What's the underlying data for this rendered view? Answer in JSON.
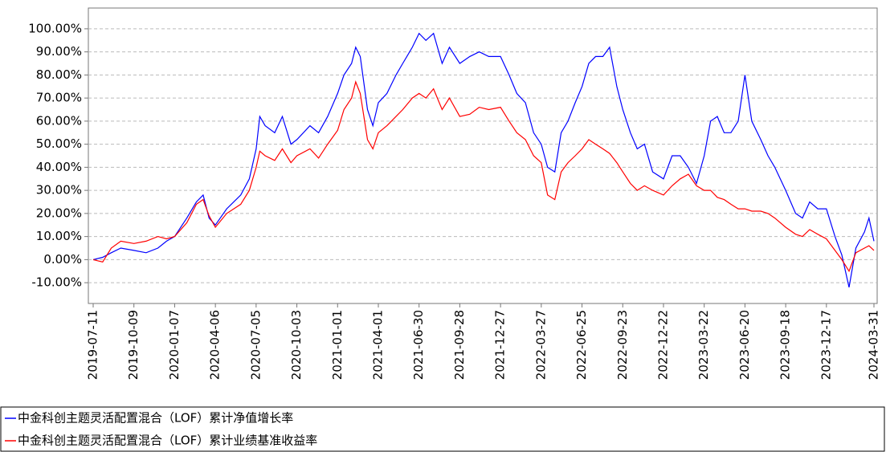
{
  "chart_data": {
    "type": "line",
    "x": [
      "2019-07-11",
      "2019-08-01",
      "2019-08-20",
      "2019-09-10",
      "2019-10-09",
      "2019-11-05",
      "2019-12-01",
      "2019-12-20",
      "2020-01-07",
      "2020-02-03",
      "2020-02-24",
      "2020-03-10",
      "2020-03-23",
      "2020-04-06",
      "2020-05-01",
      "2020-06-01",
      "2020-06-20",
      "2020-07-05",
      "2020-07-13",
      "2020-07-25",
      "2020-08-15",
      "2020-09-01",
      "2020-09-20",
      "2020-10-03",
      "2020-11-01",
      "2020-11-20",
      "2020-12-10",
      "2021-01-01",
      "2021-01-15",
      "2021-02-01",
      "2021-02-10",
      "2021-02-20",
      "2021-03-08",
      "2021-03-20",
      "2021-04-01",
      "2021-04-20",
      "2021-05-10",
      "2021-05-25",
      "2021-06-15",
      "2021-06-30",
      "2021-07-15",
      "2021-08-01",
      "2021-08-20",
      "2021-09-05",
      "2021-09-28",
      "2021-10-20",
      "2021-11-10",
      "2021-12-01",
      "2021-12-27",
      "2022-01-15",
      "2022-02-01",
      "2022-02-20",
      "2022-03-10",
      "2022-03-27",
      "2022-04-10",
      "2022-04-26",
      "2022-05-10",
      "2022-05-25",
      "2022-06-10",
      "2022-06-25",
      "2022-07-10",
      "2022-07-25",
      "2022-08-10",
      "2022-08-25",
      "2022-09-10",
      "2022-09-23",
      "2022-10-10",
      "2022-10-25",
      "2022-11-10",
      "2022-11-28",
      "2022-12-22",
      "2023-01-10",
      "2023-01-28",
      "2023-02-15",
      "2023-03-05",
      "2023-03-22",
      "2023-04-05",
      "2023-04-20",
      "2023-05-05",
      "2023-05-20",
      "2023-06-05",
      "2023-06-20",
      "2023-07-05",
      "2023-07-25",
      "2023-08-10",
      "2023-08-25",
      "2023-09-18",
      "2023-10-10",
      "2023-10-25",
      "2023-11-10",
      "2023-11-28",
      "2023-12-17",
      "2024-01-05",
      "2024-01-20",
      "2024-02-05",
      "2024-02-20",
      "2024-03-10",
      "2024-03-20",
      "2024-03-31"
    ],
    "series": [
      {
        "name": "中金科创主题灵活配置混合（LOF）累计净值增长率",
        "color": "#0000ff",
        "values": [
          0,
          1,
          3,
          5,
          4,
          3,
          5,
          8,
          10,
          18,
          25,
          28,
          18,
          15,
          22,
          28,
          35,
          48,
          62,
          58,
          55,
          62,
          50,
          52,
          58,
          55,
          62,
          72,
          80,
          85,
          92,
          88,
          65,
          58,
          68,
          72,
          80,
          85,
          92,
          98,
          95,
          98,
          85,
          92,
          85,
          88,
          90,
          88,
          88,
          80,
          72,
          68,
          55,
          50,
          40,
          38,
          55,
          60,
          68,
          75,
          85,
          88,
          88,
          92,
          75,
          65,
          55,
          48,
          50,
          38,
          35,
          45,
          45,
          40,
          33,
          45,
          60,
          62,
          55,
          55,
          60,
          80,
          60,
          52,
          45,
          40,
          30,
          20,
          18,
          25,
          22,
          22,
          10,
          2,
          -12,
          5,
          12,
          18,
          8
        ]
      },
      {
        "name": "中金科创主题灵活配置混合（LOF）累计业绩基准收益率",
        "color": "#ff0000",
        "values": [
          0,
          -1,
          5,
          8,
          7,
          8,
          10,
          9,
          10,
          16,
          24,
          26,
          19,
          14,
          20,
          24,
          30,
          40,
          47,
          45,
          43,
          48,
          42,
          45,
          48,
          44,
          50,
          56,
          65,
          70,
          77,
          72,
          52,
          48,
          55,
          58,
          62,
          65,
          70,
          72,
          70,
          74,
          65,
          70,
          62,
          63,
          66,
          65,
          66,
          60,
          55,
          52,
          45,
          42,
          28,
          26,
          38,
          42,
          45,
          48,
          52,
          50,
          48,
          46,
          42,
          38,
          33,
          30,
          32,
          30,
          28,
          32,
          35,
          37,
          32,
          30,
          30,
          27,
          26,
          24,
          22,
          22,
          21,
          21,
          20,
          18,
          14,
          11,
          10,
          13,
          11,
          9,
          4,
          0,
          -5,
          3,
          5,
          6,
          4
        ]
      }
    ],
    "xlim": [
      "2019-07-11",
      "2024-03-31"
    ],
    "xticks": [
      "2019-07-11",
      "2019-10-09",
      "2020-01-07",
      "2020-04-06",
      "2020-07-05",
      "2020-10-03",
      "2021-01-01",
      "2021-04-01",
      "2021-06-30",
      "2021-09-28",
      "2021-12-27",
      "2022-03-27",
      "2022-06-25",
      "2022-09-23",
      "2022-12-22",
      "2023-03-22",
      "2023-06-20",
      "2023-09-18",
      "2023-12-17",
      "2024-03-31"
    ],
    "ylim": [
      -19,
      109
    ],
    "yticks": [
      {
        "value": -10,
        "label": "-10.00%"
      },
      {
        "value": 0,
        "label": "0.00%"
      },
      {
        "value": 10,
        "label": "10.00%"
      },
      {
        "value": 20,
        "label": "20.00%"
      },
      {
        "value": 30,
        "label": "30.00%"
      },
      {
        "value": 40,
        "label": "40.00%"
      },
      {
        "value": 50,
        "label": "50.00%"
      },
      {
        "value": 60,
        "label": "60.00%"
      },
      {
        "value": 70,
        "label": "70.00%"
      },
      {
        "value": 80,
        "label": "80.00%"
      },
      {
        "value": 90,
        "label": "90.00%"
      },
      {
        "value": 100,
        "label": "100.00%"
      }
    ],
    "grid": true
  }
}
